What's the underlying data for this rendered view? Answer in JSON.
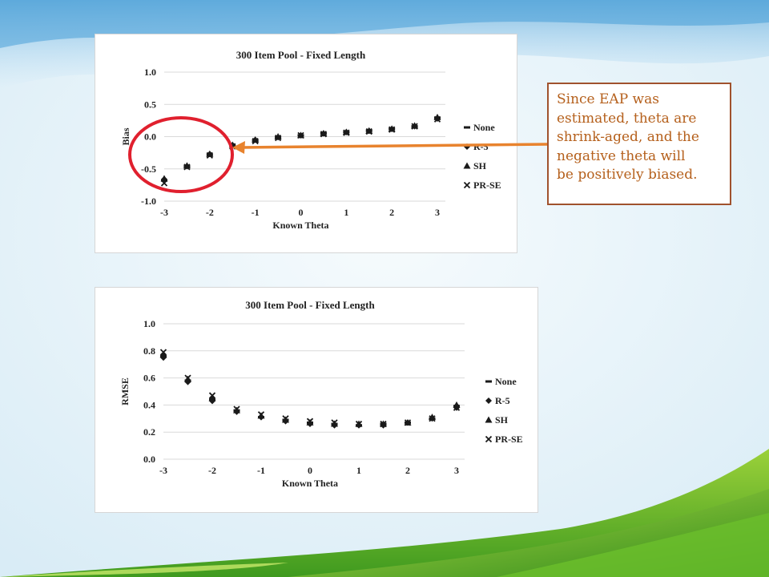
{
  "callout": {
    "text": " Since EAP was\nestimated, theta are\nshrink-aged, and the\nnegative theta will\nbe positively biased."
  },
  "colors": {
    "callout_text": "#b5601c",
    "callout_border": "#a0522d",
    "arrow": "#e8832e",
    "highlight_circle": "#e0202e",
    "marker": "#1a1a1a"
  },
  "chart_data": [
    {
      "type": "scatter",
      "title": "300 Item Pool - Fixed Length",
      "xlabel": "Known Theta",
      "ylabel": "Bias",
      "xlim": [
        -3,
        3
      ],
      "ylim": [
        -1.0,
        1.0
      ],
      "x_ticks": [
        "-3",
        "-2",
        "-1",
        "0",
        "1",
        "2",
        "3"
      ],
      "y_ticks": [
        "1.0",
        "0.5",
        "0.0",
        "-0.5",
        "-1.0"
      ],
      "grid": true,
      "legend_position": "right",
      "x": [
        -3,
        -2.5,
        -2,
        -1.5,
        -1,
        -0.5,
        0,
        0.5,
        1,
        1.5,
        2,
        2.5,
        3
      ],
      "series": [
        {
          "name": "None",
          "marker": "dash",
          "values": [
            -0.68,
            -0.46,
            -0.28,
            -0.14,
            -0.06,
            -0.01,
            0.02,
            0.05,
            0.07,
            0.09,
            0.12,
            0.16,
            0.29
          ]
        },
        {
          "name": "R-5",
          "marker": "diamond",
          "values": [
            -0.66,
            -0.46,
            -0.27,
            -0.13,
            -0.05,
            -0.01,
            0.02,
            0.05,
            0.07,
            0.09,
            0.12,
            0.16,
            0.28
          ]
        },
        {
          "name": "SH",
          "marker": "triangle",
          "values": [
            -0.65,
            -0.45,
            -0.27,
            -0.13,
            -0.05,
            0.0,
            0.02,
            0.05,
            0.07,
            0.09,
            0.12,
            0.17,
            0.3
          ]
        },
        {
          "name": "PR-SE",
          "marker": "x",
          "values": [
            -0.72,
            -0.47,
            -0.29,
            -0.15,
            -0.07,
            -0.02,
            0.02,
            0.04,
            0.06,
            0.08,
            0.11,
            0.16,
            0.27
          ]
        }
      ]
    },
    {
      "type": "scatter",
      "title": "300 Item Pool - Fixed Length",
      "xlabel": "Known Theta",
      "ylabel": "RMSE",
      "xlim": [
        -3,
        3
      ],
      "ylim": [
        0.0,
        1.0
      ],
      "x_ticks": [
        "-3",
        "-2",
        "-1",
        "0",
        "1",
        "2",
        "3"
      ],
      "y_ticks": [
        "1.0",
        "0.8",
        "0.6",
        "0.4",
        "0.2",
        "0.0"
      ],
      "grid": true,
      "legend_position": "right",
      "x": [
        -3,
        -2.5,
        -2,
        -1.5,
        -1,
        -0.5,
        0,
        0.5,
        1,
        1.5,
        2,
        2.5,
        3
      ],
      "series": [
        {
          "name": "None",
          "marker": "dash",
          "values": [
            0.76,
            0.58,
            0.44,
            0.36,
            0.31,
            0.29,
            0.27,
            0.26,
            0.25,
            0.26,
            0.27,
            0.3,
            0.39
          ]
        },
        {
          "name": "R-5",
          "marker": "diamond",
          "values": [
            0.75,
            0.57,
            0.43,
            0.35,
            0.31,
            0.28,
            0.26,
            0.25,
            0.25,
            0.25,
            0.27,
            0.3,
            0.38
          ]
        },
        {
          "name": "SH",
          "marker": "triangle",
          "values": [
            0.77,
            0.59,
            0.45,
            0.36,
            0.32,
            0.29,
            0.27,
            0.26,
            0.26,
            0.26,
            0.27,
            0.31,
            0.4
          ]
        },
        {
          "name": "PR-SE",
          "marker": "x",
          "values": [
            0.79,
            0.6,
            0.47,
            0.37,
            0.33,
            0.3,
            0.28,
            0.27,
            0.26,
            0.26,
            0.27,
            0.3,
            0.38
          ]
        }
      ]
    }
  ]
}
